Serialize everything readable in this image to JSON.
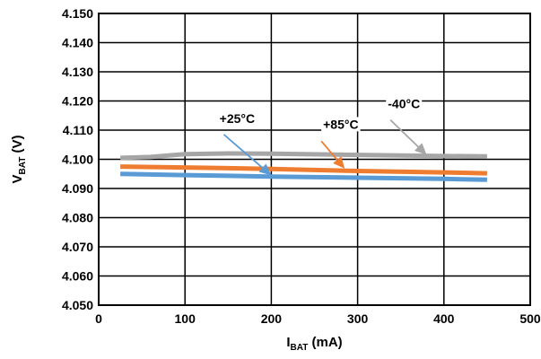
{
  "chart_data": {
    "type": "line",
    "title": "",
    "xlabel": {
      "main": "I",
      "sub": "BAT",
      "rest": " (mA)"
    },
    "ylabel": {
      "main": "V",
      "sub": "BAT",
      "rest": " (V)"
    },
    "xlim": [
      0,
      500
    ],
    "ylim": [
      4.05,
      4.15
    ],
    "xticks": [
      "0",
      "100",
      "200",
      "300",
      "400",
      "500"
    ],
    "yticks": [
      "4.050",
      "4.060",
      "4.070",
      "4.080",
      "4.090",
      "4.100",
      "4.110",
      "4.120",
      "4.130",
      "4.140",
      "4.150"
    ],
    "grid": true,
    "series": [
      {
        "name": "-40°C",
        "color": "#a6a6a6",
        "points": [
          [
            25,
            4.1005
          ],
          [
            60,
            4.1008
          ],
          [
            100,
            4.1018
          ],
          [
            150,
            4.102
          ],
          [
            200,
            4.1019
          ],
          [
            300,
            4.1015
          ],
          [
            380,
            4.1012
          ],
          [
            450,
            4.101
          ]
        ]
      },
      {
        "name": "+85°C",
        "color": "#ee7d31",
        "points": [
          [
            25,
            4.0975
          ],
          [
            100,
            4.0972
          ],
          [
            200,
            4.0967
          ],
          [
            300,
            4.096
          ],
          [
            400,
            4.0955
          ],
          [
            450,
            4.0952
          ]
        ]
      },
      {
        "name": "+25°C",
        "color": "#5a9bd5",
        "points": [
          [
            25,
            4.095
          ],
          [
            100,
            4.0946
          ],
          [
            200,
            4.0941
          ],
          [
            300,
            4.0937
          ],
          [
            400,
            4.0933
          ],
          [
            450,
            4.093
          ]
        ]
      }
    ],
    "annotations": [
      {
        "text": "+25°C",
        "series": "+25°C",
        "label_at": [
          140,
          4.1125
        ],
        "arrow_from": [
          145,
          4.1085
        ],
        "arrow_to": [
          200,
          4.0945
        ]
      },
      {
        "text": "+85°C",
        "series": "+85°C",
        "label_at": [
          260,
          4.1105
        ],
        "arrow_from": [
          258,
          4.1062
        ],
        "arrow_to": [
          285,
          4.0968
        ]
      },
      {
        "text": "-40°C",
        "series": "-40°C",
        "label_at": [
          335,
          4.1175
        ],
        "arrow_from": [
          338,
          4.1135
        ],
        "arrow_to": [
          380,
          4.1015
        ]
      }
    ]
  }
}
